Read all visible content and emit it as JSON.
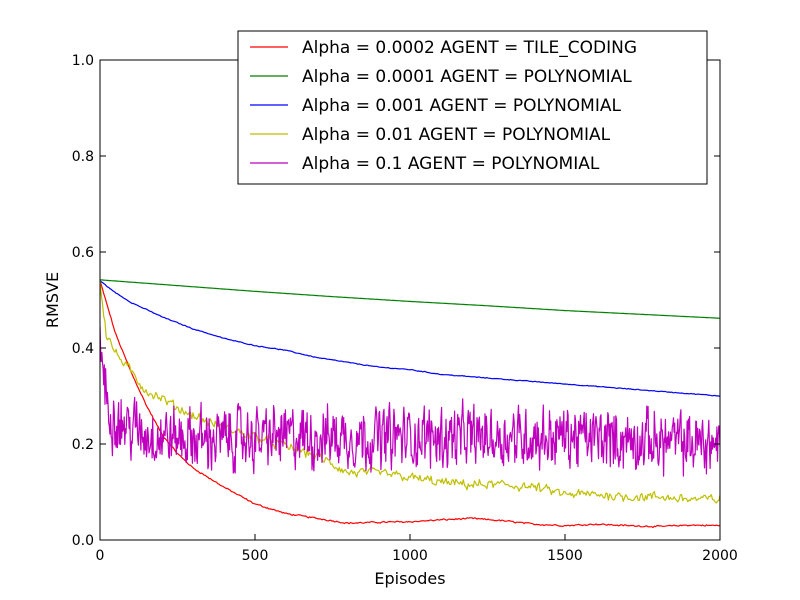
{
  "chart_data": {
    "type": "line",
    "title": "",
    "xlabel": "Episodes",
    "ylabel": "RMSVE",
    "xlim": [
      0,
      2000
    ],
    "ylim": [
      0.0,
      1.0
    ],
    "xticks": [
      0,
      500,
      1000,
      1500,
      2000
    ],
    "xtick_labels": [
      "0",
      "500",
      "1000",
      "1500",
      "2000"
    ],
    "yticks": [
      0.0,
      0.2,
      0.4,
      0.6,
      0.8,
      1.0
    ],
    "ytick_labels": [
      "0.0",
      "0.2",
      "0.4",
      "0.6",
      "0.8",
      "1.0"
    ],
    "grid": false,
    "legend_position": "top-right",
    "series": [
      {
        "name": "Alpha = 0.0002 AGENT = TILE_CODING",
        "color": "#ff0000",
        "x": [
          0,
          50,
          100,
          150,
          200,
          250,
          300,
          400,
          500,
          600,
          700,
          800,
          900,
          1000,
          1100,
          1200,
          1300,
          1400,
          1500,
          1600,
          1700,
          1800,
          1900,
          2000
        ],
        "y": [
          0.54,
          0.43,
          0.35,
          0.28,
          0.22,
          0.18,
          0.15,
          0.11,
          0.075,
          0.055,
          0.045,
          0.035,
          0.037,
          0.038,
          0.042,
          0.045,
          0.04,
          0.033,
          0.03,
          0.033,
          0.03,
          0.028,
          0.031,
          0.03
        ],
        "noise": 0.002
      },
      {
        "name": "Alpha = 0.0001 AGENT = POLYNOMIAL",
        "color": "#008000",
        "x": [
          0,
          250,
          500,
          750,
          1000,
          1250,
          1500,
          1750,
          2000
        ],
        "y": [
          0.542,
          0.53,
          0.518,
          0.507,
          0.497,
          0.488,
          0.478,
          0.47,
          0.462
        ],
        "noise": 0
      },
      {
        "name": "Alpha = 0.001 AGENT = POLYNOMIAL",
        "color": "#0000ff",
        "x": [
          0,
          50,
          100,
          200,
          300,
          400,
          500,
          600,
          700,
          800,
          900,
          1000,
          1100,
          1200,
          1300,
          1400,
          1500,
          1600,
          1700,
          1800,
          1900,
          2000
        ],
        "y": [
          0.54,
          0.515,
          0.495,
          0.465,
          0.44,
          0.42,
          0.405,
          0.395,
          0.38,
          0.37,
          0.36,
          0.355,
          0.345,
          0.34,
          0.335,
          0.33,
          0.325,
          0.32,
          0.315,
          0.31,
          0.305,
          0.3
        ],
        "noise": 0.001
      },
      {
        "name": "Alpha = 0.01 AGENT = POLYNOMIAL",
        "color": "#bfbf00",
        "x": [
          0,
          20,
          50,
          100,
          150,
          200,
          250,
          300,
          350,
          400,
          500,
          600,
          700,
          800,
          900,
          1000,
          1100,
          1200,
          1300,
          1400,
          1500,
          1600,
          1700,
          1800,
          1900,
          2000
        ],
        "y": [
          0.54,
          0.43,
          0.39,
          0.35,
          0.31,
          0.295,
          0.275,
          0.26,
          0.245,
          0.235,
          0.215,
          0.195,
          0.175,
          0.14,
          0.14,
          0.13,
          0.12,
          0.115,
          0.115,
          0.11,
          0.095,
          0.095,
          0.09,
          0.09,
          0.085,
          0.085
        ],
        "noise": 0.012
      },
      {
        "name": "Alpha = 0.1 AGENT = POLYNOMIAL",
        "color": "#bf00bf",
        "x": [
          0,
          10,
          20,
          40,
          80,
          150,
          300,
          600,
          1000,
          1500,
          2000
        ],
        "y": [
          0.43,
          0.36,
          0.29,
          0.26,
          0.24,
          0.22,
          0.21,
          0.215,
          0.215,
          0.215,
          0.2
        ],
        "noise": 0.075
      }
    ]
  }
}
